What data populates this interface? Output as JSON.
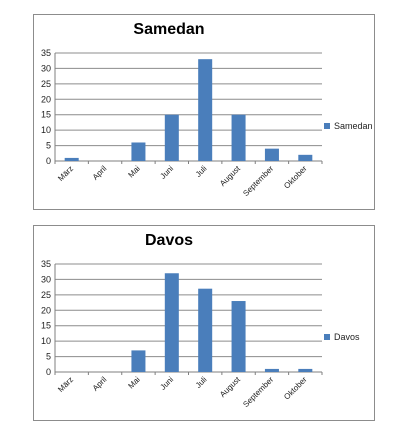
{
  "colors": {
    "bar": "#4a7ebb",
    "grid": "#8c8c8c",
    "axis": "#7f7f7f"
  },
  "chart_data": [
    {
      "type": "bar",
      "title": "Samedan",
      "categories": [
        "März",
        "April",
        "Mai",
        "Juni",
        "Juli",
        "August",
        "September",
        "Oktober"
      ],
      "series": [
        {
          "name": "Samedan",
          "values": [
            1,
            0,
            6,
            15,
            33,
            15,
            4,
            2
          ]
        }
      ],
      "ylim": [
        0,
        35
      ],
      "yticks": [
        0,
        5,
        10,
        15,
        20,
        25,
        30,
        35
      ],
      "grid": true,
      "legend": "right"
    },
    {
      "type": "bar",
      "title": "Davos",
      "categories": [
        "März",
        "April",
        "Mai",
        "Juni",
        "Juli",
        "August",
        "September",
        "Oktober"
      ],
      "series": [
        {
          "name": "Davos",
          "values": [
            0,
            0,
            7,
            32,
            27,
            23,
            1,
            1
          ]
        }
      ],
      "ylim": [
        0,
        35
      ],
      "yticks": [
        0,
        5,
        10,
        15,
        20,
        25,
        30,
        35
      ],
      "grid": true,
      "legend": "right"
    }
  ]
}
